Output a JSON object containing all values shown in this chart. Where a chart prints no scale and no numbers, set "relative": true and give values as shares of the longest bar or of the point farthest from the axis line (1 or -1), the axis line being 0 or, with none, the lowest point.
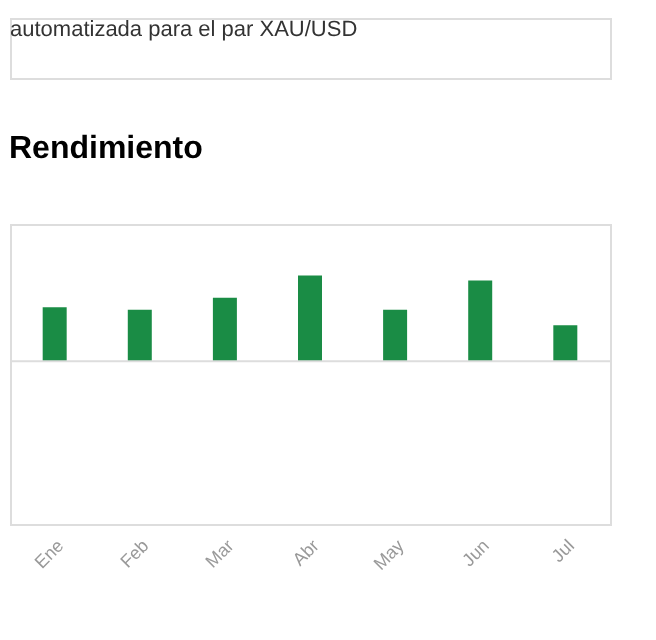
{
  "chart_data": {
    "type": "bar",
    "title": "Rendimiento",
    "annotations": [
      "automatizada para el par XAU/USD"
    ],
    "categories": [
      "Ene",
      "Feb",
      "Mar",
      "Abr",
      "May",
      "Jun",
      "Jul"
    ],
    "values": [
      0.63,
      0.6,
      0.74,
      1,
      0.6,
      0.94,
      0.42
    ],
    "color": "#1a8c45",
    "relative": true
  }
}
